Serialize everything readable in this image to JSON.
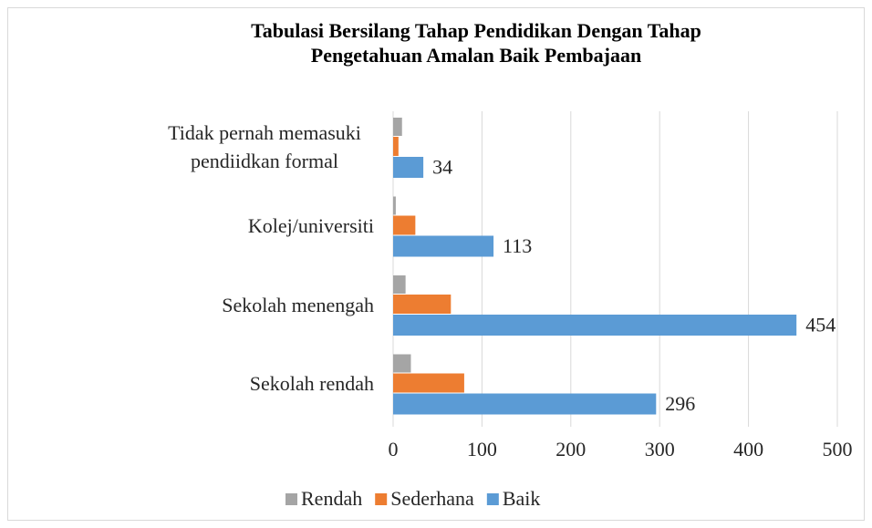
{
  "chart_data": {
    "type": "hbar",
    "title": "Tabulasi Bersilang Tahap Pendidikan Dengan Tahap Pengetahuan Amalan Baik Pembajaan",
    "categories": [
      "Tidak pernah memasuki pendiidkan formal",
      "Kolej/universiti",
      "Sekolah menengah",
      "Sekolah rendah"
    ],
    "series": [
      {
        "name": "Rendah",
        "color": "#a5a5a5",
        "values": [
          10,
          3,
          14,
          20
        ]
      },
      {
        "name": "Sederhana",
        "color": "#ed7d31",
        "values": [
          6,
          25,
          65,
          80
        ]
      },
      {
        "name": "Baik",
        "color": "#5b9bd5",
        "values": [
          34,
          113,
          454,
          296
        ],
        "show_labels": true
      }
    ],
    "xlim": [
      0,
      500
    ],
    "xticks": [
      0,
      100,
      200,
      300,
      400,
      500
    ],
    "grid": true,
    "legend": "bottom"
  }
}
